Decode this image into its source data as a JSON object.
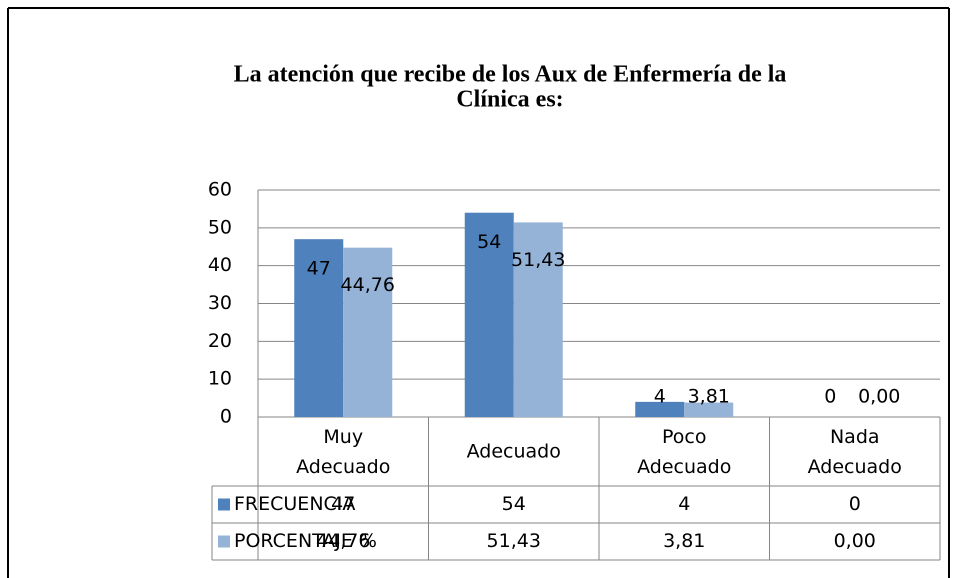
{
  "chart_data": {
    "type": "bar",
    "title": [
      "La atención que recibe de los Aux de Enfermería de la",
      "Clínica es:"
    ],
    "categories": [
      "Muy Adecuado",
      "Adecuado",
      "Poco Adecuado",
      "Nada Adecuado"
    ],
    "series": [
      {
        "name": "FRECUENCIA",
        "color": "#4f81bd",
        "values": [
          47,
          54,
          4,
          0
        ]
      },
      {
        "name": "PORCENTAJE %",
        "color": "#95b3d7",
        "values": [
          44.76,
          51.43,
          3.81,
          0.0
        ],
        "value_labels": [
          "44,76",
          "51,43",
          "3,81",
          "0,00"
        ]
      }
    ],
    "ylim": [
      0,
      60
    ],
    "yticks": [
      0,
      10,
      20,
      30,
      40,
      50,
      60
    ],
    "grid": true,
    "legend": "data-table"
  }
}
